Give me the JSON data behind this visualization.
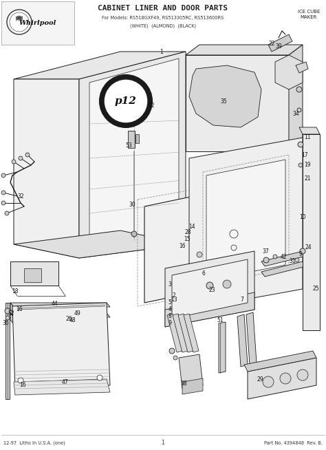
{
  "title": "CABINET LINER AND DOOR PARTS",
  "subtitle1": "For Models: RS518GXF49, RS513305RC, RS513600RS",
  "subtitle2": "(WHITE)  (ALMOND)  (BLACK)",
  "brand": "Whirlpool",
  "top_right_label": "ICE CUBE\nMAKER",
  "bottom_left": "12-97  Litho In U.S.A. (one)",
  "bottom_center": "1",
  "bottom_right": "Part No. 4394848  Rev. B.",
  "bg_color": "#ffffff",
  "lc": "#1a1a1a",
  "lw": 0.7,
  "header_box_color": "#f8f8f8",
  "fig_w": 4.74,
  "fig_h": 6.54,
  "dpi": 100
}
